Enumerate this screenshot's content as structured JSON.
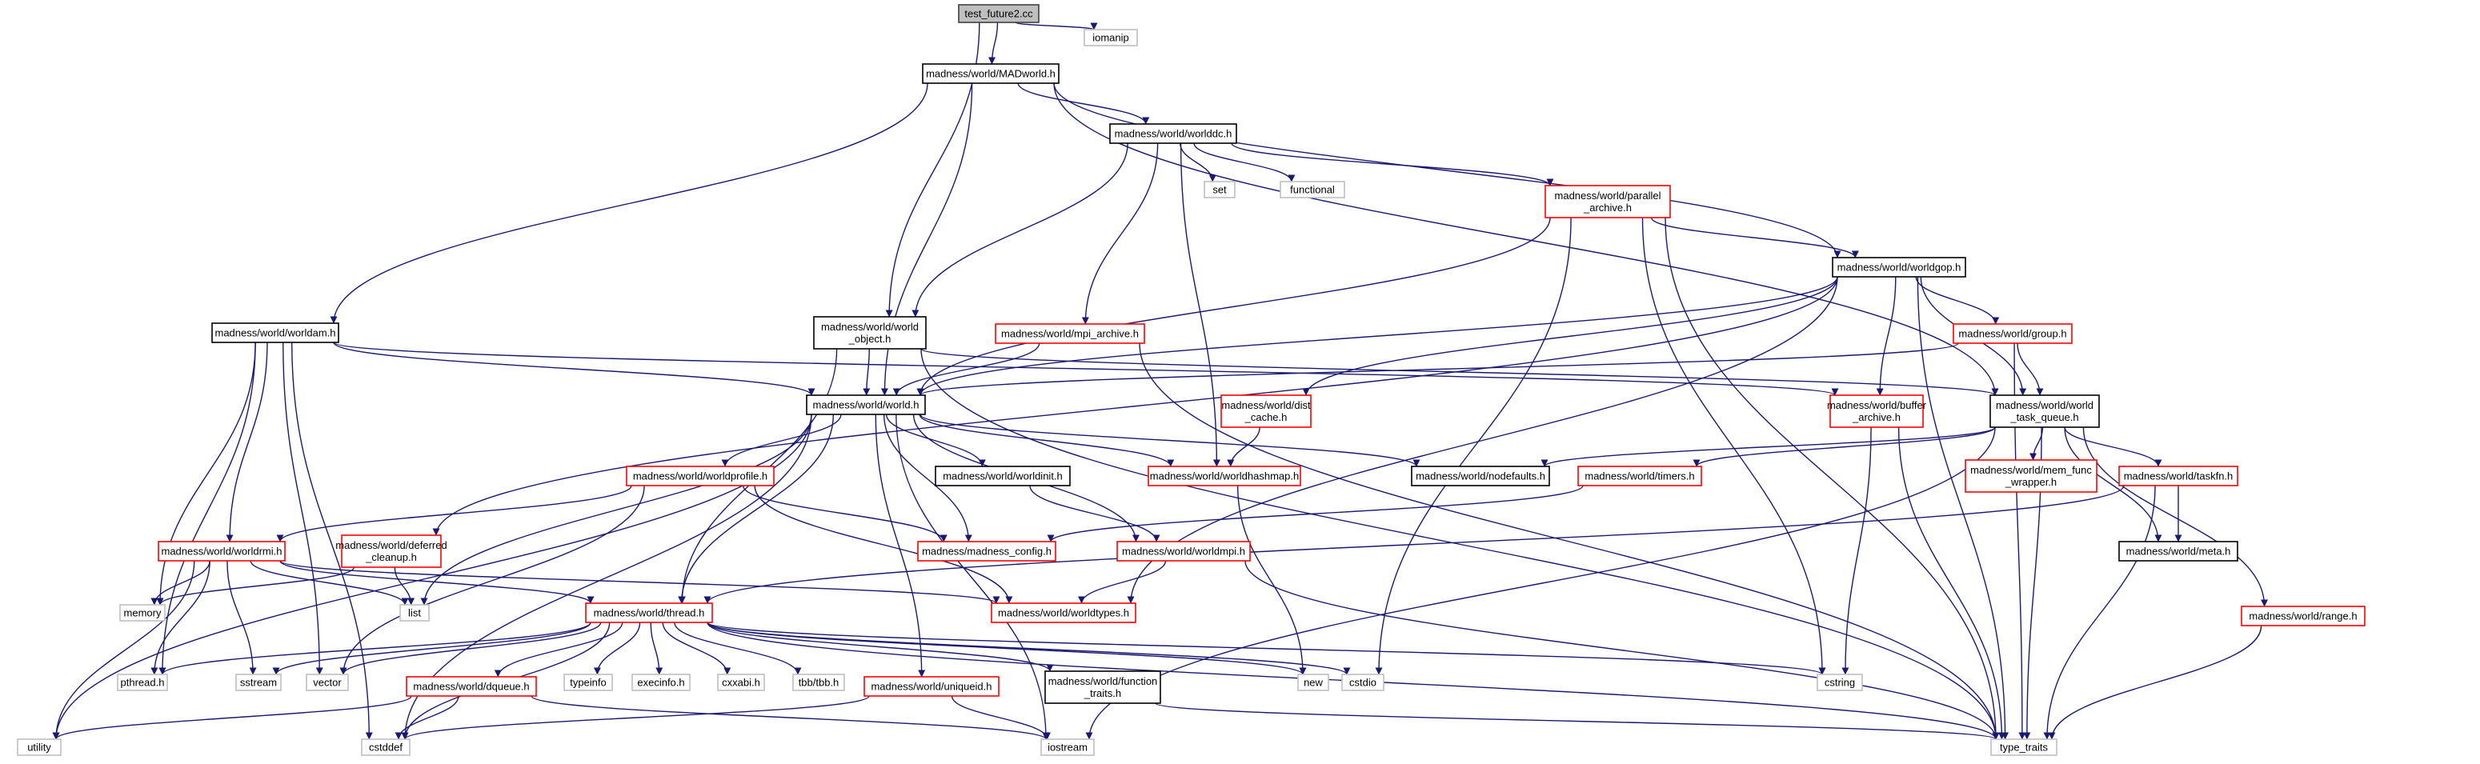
{
  "colors": {
    "root_fill": "#bfbfbf",
    "root_border": "#404040",
    "documented_border": "#000000",
    "incomplete_border": "#ff0000",
    "system_border": "#bfbfbf",
    "edge": "#191970"
  },
  "nodes": [
    {
      "id": "root",
      "lines": [
        "test_future2.cc"
      ],
      "kind": "root"
    },
    {
      "id": "iomanip",
      "lines": [
        "iomanip"
      ],
      "kind": "system"
    },
    {
      "id": "madworld",
      "lines": [
        "madness/world/MADworld.h"
      ],
      "kind": "documented"
    },
    {
      "id": "worlddc",
      "lines": [
        "madness/world/worlddc.h"
      ],
      "kind": "documented"
    },
    {
      "id": "set",
      "lines": [
        "set"
      ],
      "kind": "system"
    },
    {
      "id": "functional",
      "lines": [
        "functional"
      ],
      "kind": "system"
    },
    {
      "id": "parallel",
      "lines": [
        "madness/world/parallel",
        "_archive.h"
      ],
      "kind": "incomplete"
    },
    {
      "id": "worldgop",
      "lines": [
        "madness/world/worldgop.h"
      ],
      "kind": "documented"
    },
    {
      "id": "worldam",
      "lines": [
        "madness/world/worldam.h"
      ],
      "kind": "documented"
    },
    {
      "id": "worldobj",
      "lines": [
        "madness/world/world",
        "_object.h"
      ],
      "kind": "documented"
    },
    {
      "id": "mpiarch",
      "lines": [
        "madness/world/mpi_archive.h"
      ],
      "kind": "incomplete"
    },
    {
      "id": "group",
      "lines": [
        "madness/world/group.h"
      ],
      "kind": "incomplete"
    },
    {
      "id": "world",
      "lines": [
        "madness/world/world.h"
      ],
      "kind": "documented"
    },
    {
      "id": "distcache",
      "lines": [
        "madness/world/dist",
        "_cache.h"
      ],
      "kind": "incomplete"
    },
    {
      "id": "buffer",
      "lines": [
        "madness/world/buffer",
        "_archive.h"
      ],
      "kind": "incomplete"
    },
    {
      "id": "wtq",
      "lines": [
        "madness/world/world",
        "_task_queue.h"
      ],
      "kind": "documented"
    },
    {
      "id": "worldprofile",
      "lines": [
        "madness/world/worldprofile.h"
      ],
      "kind": "incomplete"
    },
    {
      "id": "worldinit",
      "lines": [
        "madness/world/worldinit.h"
      ],
      "kind": "documented"
    },
    {
      "id": "hashmap",
      "lines": [
        "madness/world/worldhashmap.h"
      ],
      "kind": "incomplete"
    },
    {
      "id": "nodefaults",
      "lines": [
        "madness/world/nodefaults.h"
      ],
      "kind": "documented"
    },
    {
      "id": "timers",
      "lines": [
        "madness/world/timers.h"
      ],
      "kind": "incomplete"
    },
    {
      "id": "memfunc",
      "lines": [
        "madness/world/mem_func",
        "_wrapper.h"
      ],
      "kind": "incomplete"
    },
    {
      "id": "taskfn",
      "lines": [
        "madness/world/taskfn.h"
      ],
      "kind": "incomplete"
    },
    {
      "id": "meta",
      "lines": [
        "madness/world/meta.h"
      ],
      "kind": "documented"
    },
    {
      "id": "worldrmi",
      "lines": [
        "madness/world/worldrmi.h"
      ],
      "kind": "incomplete"
    },
    {
      "id": "deferred",
      "lines": [
        "madness/world/deferred",
        "_cleanup.h"
      ],
      "kind": "incomplete"
    },
    {
      "id": "config",
      "lines": [
        "madness/madness_config.h"
      ],
      "kind": "incomplete"
    },
    {
      "id": "worldmpi",
      "lines": [
        "madness/world/worldmpi.h"
      ],
      "kind": "incomplete"
    },
    {
      "id": "list",
      "lines": [
        "list"
      ],
      "kind": "system"
    },
    {
      "id": "memory",
      "lines": [
        "memory"
      ],
      "kind": "system"
    },
    {
      "id": "worldtypes",
      "lines": [
        "madness/world/worldtypes.h"
      ],
      "kind": "incomplete"
    },
    {
      "id": "range",
      "lines": [
        "madness/world/range.h"
      ],
      "kind": "incomplete"
    },
    {
      "id": "thread",
      "lines": [
        "madness/world/thread.h"
      ],
      "kind": "incomplete"
    },
    {
      "id": "pthread",
      "lines": [
        "pthread.h"
      ],
      "kind": "system"
    },
    {
      "id": "sstream",
      "lines": [
        "sstream"
      ],
      "kind": "system"
    },
    {
      "id": "vector",
      "lines": [
        "vector"
      ],
      "kind": "system"
    },
    {
      "id": "typeinfo",
      "lines": [
        "typeinfo"
      ],
      "kind": "system"
    },
    {
      "id": "execinfo",
      "lines": [
        "execinfo.h"
      ],
      "kind": "system"
    },
    {
      "id": "cxxabi",
      "lines": [
        "cxxabi.h"
      ],
      "kind": "system"
    },
    {
      "id": "tbb",
      "lines": [
        "tbb/tbb.h"
      ],
      "kind": "system"
    },
    {
      "id": "new",
      "lines": [
        "new"
      ],
      "kind": "system"
    },
    {
      "id": "cstdio",
      "lines": [
        "cstdio"
      ],
      "kind": "system"
    },
    {
      "id": "cstring",
      "lines": [
        "cstring"
      ],
      "kind": "system"
    },
    {
      "id": "dqueue",
      "lines": [
        "madness/world/dqueue.h"
      ],
      "kind": "incomplete"
    },
    {
      "id": "uniqueid",
      "lines": [
        "madness/world/uniqueid.h"
      ],
      "kind": "incomplete"
    },
    {
      "id": "functraits",
      "lines": [
        "madness/world/function",
        "_traits.h"
      ],
      "kind": "documented"
    },
    {
      "id": "utility",
      "lines": [
        "utility"
      ],
      "kind": "system"
    },
    {
      "id": "cstddef",
      "lines": [
        "cstddef"
      ],
      "kind": "system"
    },
    {
      "id": "iostream",
      "lines": [
        "iostream"
      ],
      "kind": "system"
    },
    {
      "id": "typetraits",
      "lines": [
        "type_traits"
      ],
      "kind": "system"
    }
  ],
  "edges": [
    [
      "root",
      "madworld"
    ],
    [
      "root",
      "iomanip"
    ],
    [
      "root",
      "worldobj"
    ],
    [
      "madworld",
      "worlddc"
    ],
    [
      "madworld",
      "worldam"
    ],
    [
      "madworld",
      "world"
    ],
    [
      "madworld",
      "worldgop"
    ],
    [
      "madworld",
      "wtq"
    ],
    [
      "worlddc",
      "set"
    ],
    [
      "worlddc",
      "functional"
    ],
    [
      "worlddc",
      "parallel"
    ],
    [
      "worlddc",
      "worldobj"
    ],
    [
      "worlddc",
      "mpiarch"
    ],
    [
      "worlddc",
      "hashmap"
    ],
    [
      "parallel",
      "worldgop"
    ],
    [
      "parallel",
      "world"
    ],
    [
      "parallel",
      "cstdio"
    ],
    [
      "parallel",
      "cstring"
    ],
    [
      "parallel",
      "typetraits"
    ],
    [
      "worldgop",
      "group"
    ],
    [
      "worldgop",
      "wtq"
    ],
    [
      "worldgop",
      "buffer"
    ],
    [
      "worldgop",
      "world"
    ],
    [
      "worldgop",
      "distcache"
    ],
    [
      "worldgop",
      "deferred"
    ],
    [
      "worldgop",
      "worldtypes"
    ],
    [
      "worldgop",
      "typetraits"
    ],
    [
      "group",
      "wtq"
    ],
    [
      "group",
      "world"
    ],
    [
      "group",
      "typetraits"
    ],
    [
      "worldam",
      "world"
    ],
    [
      "worldam",
      "worldrmi"
    ],
    [
      "worldam",
      "memory"
    ],
    [
      "worldam",
      "pthread"
    ],
    [
      "worldam",
      "vector"
    ],
    [
      "worldam",
      "cstddef"
    ],
    [
      "worldam",
      "buffer"
    ],
    [
      "worldobj",
      "world"
    ],
    [
      "worldobj",
      "wtq"
    ],
    [
      "worldobj",
      "thread"
    ],
    [
      "worldobj",
      "typetraits"
    ],
    [
      "mpiarch",
      "world"
    ],
    [
      "mpiarch",
      "typetraits"
    ],
    [
      "distcache",
      "hashmap"
    ],
    [
      "buffer",
      "cstring"
    ],
    [
      "buffer",
      "typetraits"
    ],
    [
      "wtq",
      "nodefaults"
    ],
    [
      "wtq",
      "timers"
    ],
    [
      "wtq",
      "memfunc"
    ],
    [
      "wtq",
      "taskfn"
    ],
    [
      "wtq",
      "meta"
    ],
    [
      "wtq",
      "range"
    ],
    [
      "wtq",
      "iostream"
    ],
    [
      "wtq",
      "typetraits"
    ],
    [
      "world",
      "worldprofile"
    ],
    [
      "world",
      "worldinit"
    ],
    [
      "world",
      "hashmap"
    ],
    [
      "world",
      "nodefaults"
    ],
    [
      "world",
      "config"
    ],
    [
      "world",
      "worldmpi"
    ],
    [
      "world",
      "thread"
    ],
    [
      "world",
      "uniqueid"
    ],
    [
      "world",
      "utility"
    ],
    [
      "world",
      "list"
    ],
    [
      "world",
      "cstddef"
    ],
    [
      "world",
      "iostream"
    ],
    [
      "worldprofile",
      "worldrmi"
    ],
    [
      "worldprofile",
      "config"
    ],
    [
      "worldprofile",
      "worldtypes"
    ],
    [
      "worldprofile",
      "vector"
    ],
    [
      "worldinit",
      "worldmpi"
    ],
    [
      "hashmap",
      "new"
    ],
    [
      "timers",
      "config"
    ],
    [
      "taskfn",
      "meta"
    ],
    [
      "taskfn",
      "thread"
    ],
    [
      "taskfn",
      "typetraits"
    ],
    [
      "range",
      "typetraits"
    ],
    [
      "worldrmi",
      "thread"
    ],
    [
      "worldrmi",
      "list"
    ],
    [
      "worldrmi",
      "memory"
    ],
    [
      "worldrmi",
      "pthread"
    ],
    [
      "worldrmi",
      "sstream"
    ],
    [
      "worldrmi",
      "utility"
    ],
    [
      "worldrmi",
      "worldtypes"
    ],
    [
      "deferred",
      "list"
    ],
    [
      "deferred",
      "memory"
    ],
    [
      "worldmpi",
      "worldtypes"
    ],
    [
      "worldmpi",
      "typetraits"
    ],
    [
      "thread",
      "pthread"
    ],
    [
      "thread",
      "sstream"
    ],
    [
      "thread",
      "vector"
    ],
    [
      "thread",
      "typeinfo"
    ],
    [
      "thread",
      "execinfo"
    ],
    [
      "thread",
      "cxxabi"
    ],
    [
      "thread",
      "tbb"
    ],
    [
      "thread",
      "new"
    ],
    [
      "thread",
      "cstdio"
    ],
    [
      "thread",
      "cstring"
    ],
    [
      "thread",
      "dqueue"
    ],
    [
      "thread",
      "functraits"
    ],
    [
      "thread",
      "cstddef"
    ],
    [
      "thread",
      "typetraits"
    ],
    [
      "dqueue",
      "utility"
    ],
    [
      "dqueue",
      "cstddef"
    ],
    [
      "dqueue",
      "iostream"
    ],
    [
      "uniqueid",
      "cstddef"
    ],
    [
      "uniqueid",
      "iostream"
    ],
    [
      "functraits",
      "typetraits"
    ]
  ]
}
